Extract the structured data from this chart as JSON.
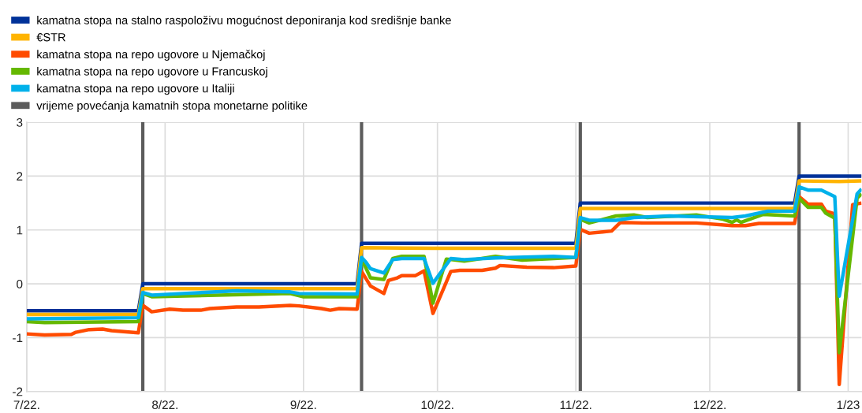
{
  "chart_data": {
    "type": "line",
    "series": [
      {
        "name": "kamatna stopa na stalno raspoloživu mogućnost deponiranja kod središnje banke",
        "color": "#003299",
        "x": [
          "2022-07-01",
          "2022-07-26",
          "2022-07-27",
          "2022-09-13",
          "2022-09-14",
          "2022-11-01",
          "2022-11-02",
          "2022-12-20",
          "2022-12-21",
          "2023-01-04"
        ],
        "values": [
          -0.5,
          -0.5,
          0,
          0,
          0.75,
          0.75,
          1.5,
          1.5,
          2,
          2
        ]
      },
      {
        "name": "€STR",
        "color": "#ffb400",
        "x": [
          "2022-07-01",
          "2022-07-26",
          "2022-07-27",
          "2022-09-13",
          "2022-09-14",
          "2022-09-30",
          "2022-10-03",
          "2022-11-01",
          "2022-11-02",
          "2022-12-20",
          "2022-12-21",
          "2022-12-30",
          "2023-01-04"
        ],
        "values": [
          -0.57,
          -0.57,
          -0.09,
          -0.09,
          0.67,
          0.66,
          0.66,
          0.66,
          1.4,
          1.4,
          1.91,
          1.9,
          1.91
        ]
      },
      {
        "name": "kamatna stopa na repo ugovore u Njemačkoj",
        "color": "#ff4b00",
        "x": [
          "2022-07-01",
          "2022-07-05",
          "2022-07-11",
          "2022-07-12",
          "2022-07-15",
          "2022-07-18",
          "2022-07-20",
          "2022-07-26",
          "2022-07-27",
          "2022-07-29",
          "2022-08-02",
          "2022-08-05",
          "2022-08-09",
          "2022-08-11",
          "2022-08-17",
          "2022-08-22",
          "2022-08-29",
          "2022-08-31",
          "2022-09-05",
          "2022-09-07",
          "2022-09-09",
          "2022-09-13",
          "2022-09-14",
          "2022-09-16",
          "2022-09-19",
          "2022-09-20",
          "2022-09-22",
          "2022-09-23",
          "2022-09-26",
          "2022-09-28",
          "2022-09-30",
          "2022-10-04",
          "2022-10-06",
          "2022-10-11",
          "2022-10-14",
          "2022-10-15",
          "2022-10-21",
          "2022-10-27",
          "2022-11-01",
          "2022-11-02",
          "2022-11-04",
          "2022-11-09",
          "2022-11-11",
          "2022-11-16",
          "2022-11-28",
          "2022-12-06",
          "2022-12-09",
          "2022-12-12",
          "2022-12-20",
          "2022-12-21",
          "2022-12-23",
          "2022-12-26",
          "2022-12-27",
          "2022-12-29",
          "2022-12-30",
          "2023-01-02",
          "2023-01-04"
        ],
        "values": [
          -0.93,
          -0.95,
          -0.94,
          -0.9,
          -0.85,
          -0.84,
          -0.87,
          -0.91,
          -0.4,
          -0.52,
          -0.47,
          -0.49,
          -0.49,
          -0.46,
          -0.43,
          -0.43,
          -0.4,
          -0.41,
          -0.46,
          -0.49,
          -0.46,
          -0.47,
          0.23,
          -0.04,
          -0.18,
          0.06,
          0.11,
          0.15,
          0.15,
          0.24,
          -0.55,
          0.23,
          0.25,
          0.25,
          0.29,
          0.34,
          0.31,
          0.3,
          0.33,
          1.01,
          0.94,
          0.98,
          1.14,
          1.13,
          1.13,
          1.08,
          1.08,
          1.12,
          1.12,
          1.62,
          1.48,
          1.48,
          1.35,
          1.3,
          -1.87,
          1.47,
          1.5
        ]
      },
      {
        "name": "kamatna stopa na repo ugovore u Francuskoj",
        "color": "#65b800",
        "x": [
          "2022-07-01",
          "2022-07-05",
          "2022-07-26",
          "2022-07-27",
          "2022-07-29",
          "2022-08-29",
          "2022-09-01",
          "2022-09-13",
          "2022-09-14",
          "2022-09-16",
          "2022-09-19",
          "2022-09-21",
          "2022-09-23",
          "2022-09-28",
          "2022-09-30",
          "2022-10-03",
          "2022-10-07",
          "2022-10-14",
          "2022-10-20",
          "2022-10-27",
          "2022-11-01",
          "2022-11-02",
          "2022-11-04",
          "2022-11-10",
          "2022-11-14",
          "2022-11-17",
          "2022-11-28",
          "2022-12-04",
          "2022-12-06",
          "2022-12-07",
          "2022-12-08",
          "2022-12-13",
          "2022-12-20",
          "2022-12-21",
          "2022-12-23",
          "2022-12-26",
          "2022-12-27",
          "2022-12-29",
          "2022-12-30",
          "2023-01-03",
          "2023-01-04"
        ],
        "values": [
          -0.7,
          -0.72,
          -0.7,
          -0.18,
          -0.24,
          -0.18,
          -0.24,
          -0.24,
          0.47,
          0.11,
          0.08,
          0.47,
          0.51,
          0.51,
          -0.36,
          0.46,
          0.42,
          0.51,
          0.44,
          0.47,
          0.49,
          1.2,
          1.13,
          1.26,
          1.28,
          1.23,
          1.28,
          1.2,
          1.14,
          1.19,
          1.14,
          1.29,
          1.26,
          1.59,
          1.42,
          1.42,
          1.31,
          1.22,
          -1.28,
          1.59,
          1.67
        ]
      },
      {
        "name": "kamatna stopa na repo ugovore u Italiji",
        "color": "#00b1ea",
        "x": [
          "2022-07-01",
          "2022-07-26",
          "2022-07-27",
          "2022-07-29",
          "2022-08-05",
          "2022-08-17",
          "2022-08-29",
          "2022-08-31",
          "2022-09-13",
          "2022-09-14",
          "2022-09-15",
          "2022-09-16",
          "2022-09-19",
          "2022-09-21",
          "2022-09-23",
          "2022-09-28",
          "2022-09-30",
          "2022-10-04",
          "2022-10-07",
          "2022-10-14",
          "2022-10-27",
          "2022-11-01",
          "2022-11-02",
          "2022-11-04",
          "2022-11-10",
          "2022-11-14",
          "2022-11-22",
          "2022-12-06",
          "2022-12-09",
          "2022-12-14",
          "2022-12-20",
          "2022-12-21",
          "2022-12-23",
          "2022-12-26",
          "2022-12-29",
          "2022-12-30",
          "2023-01-03",
          "2023-01-04"
        ],
        "values": [
          -0.65,
          -0.63,
          -0.16,
          -0.21,
          -0.18,
          -0.13,
          -0.15,
          -0.18,
          -0.19,
          0.49,
          0.4,
          0.28,
          0.2,
          0.45,
          0.47,
          0.47,
          0.01,
          0.47,
          0.45,
          0.48,
          0.51,
          0.49,
          1.23,
          1.18,
          1.18,
          1.23,
          1.26,
          1.23,
          1.26,
          1.35,
          1.35,
          1.8,
          1.74,
          1.74,
          1.62,
          -0.23,
          1.67,
          1.76
        ]
      }
    ],
    "ref_lines": [
      {
        "axis": "x",
        "value": "2022-07-27",
        "label": "vrijeme povećanja kamatnih stopa monetarne politike",
        "color": "#5c5c5c"
      },
      {
        "axis": "x",
        "value": "2022-09-14",
        "color": "#5c5c5c"
      },
      {
        "axis": "x",
        "value": "2022-11-02",
        "color": "#5c5c5c"
      },
      {
        "axis": "x",
        "value": "2022-12-21",
        "color": "#5c5c5c"
      }
    ],
    "xlim": [
      "2022-07-01",
      "2023-01-04"
    ],
    "xticks": [
      {
        "value": "2022-07-01",
        "label": "7/22."
      },
      {
        "value": "2022-08-01",
        "label": "8/22."
      },
      {
        "value": "2022-09-01",
        "label": "9/22."
      },
      {
        "value": "2022-10-01",
        "label": "10/22."
      },
      {
        "value": "2022-11-01",
        "label": "11/22."
      },
      {
        "value": "2022-12-01",
        "label": "12/22."
      },
      {
        "value": "2023-01-01",
        "label": "1/23"
      }
    ],
    "ylim": [
      -2,
      3
    ],
    "yticks": [
      -2,
      -1,
      0,
      1,
      2,
      3
    ],
    "grid": true,
    "legend": "top left",
    "line_style": "solid",
    "marker": "none"
  }
}
